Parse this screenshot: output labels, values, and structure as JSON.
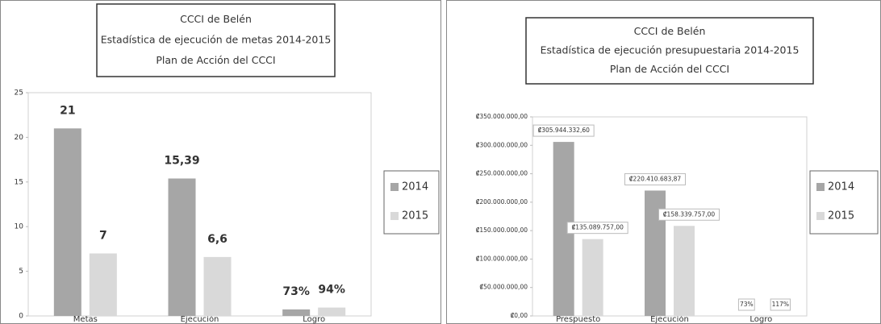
{
  "chart_data": [
    {
      "type": "bar",
      "title": [
        "CCCI de Belén",
        "Estadística de ejecución de metas 2014-2015",
        "Plan de Acción del CCCI"
      ],
      "categories": [
        "Metas",
        "Ejecución",
        "Logro"
      ],
      "series": [
        {
          "name": "2014",
          "color": "#a6a6a6",
          "values": [
            21,
            15.39,
            0.73
          ],
          "value_labels": [
            "21",
            "15,39",
            "73%"
          ]
        },
        {
          "name": "2015",
          "color": "#d9d9d9",
          "values": [
            7,
            6.6,
            0.94
          ],
          "value_labels": [
            "7",
            "6,6",
            "94%"
          ]
        }
      ],
      "ylim": [
        0,
        25
      ],
      "yticks": [
        0,
        5,
        10,
        15,
        20,
        25
      ],
      "legend": "right"
    },
    {
      "type": "bar",
      "title": [
        "CCCI de Belén",
        "Estadística de ejecución presupuestaria 2014-2015",
        "Plan de Acción del CCCI"
      ],
      "categories": [
        "Prespuesto",
        "Ejecución",
        "Logro"
      ],
      "series": [
        {
          "name": "2014",
          "color": "#a6a6a6",
          "values": [
            305944332.6,
            220410683.87,
            0.73
          ],
          "value_labels": [
            "₡305.944.332,60",
            "₡220.410.683,87",
            "73%"
          ]
        },
        {
          "name": "2015",
          "color": "#d9d9d9",
          "values": [
            135089757.0,
            158339757.0,
            1.17
          ],
          "value_labels": [
            "₡135.089.757,00",
            "₡158.339.757,00",
            "117%"
          ]
        }
      ],
      "ylim": [
        0,
        350000000
      ],
      "yticks": [
        {
          "value": 0,
          "label": "₡0,00"
        },
        {
          "value": 50000000,
          "label": "₡50.000.000,00"
        },
        {
          "value": 100000000,
          "label": "₡100.000.000,00"
        },
        {
          "value": 150000000,
          "label": "₡150.000.000,00"
        },
        {
          "value": 200000000,
          "label": "₡200.000.000,00"
        },
        {
          "value": 250000000,
          "label": "₡250.000.000,00"
        },
        {
          "value": 300000000,
          "label": "₡300.000.000,00"
        },
        {
          "value": 350000000,
          "label": "₡350.000.000,00"
        }
      ],
      "legend": "right"
    }
  ]
}
